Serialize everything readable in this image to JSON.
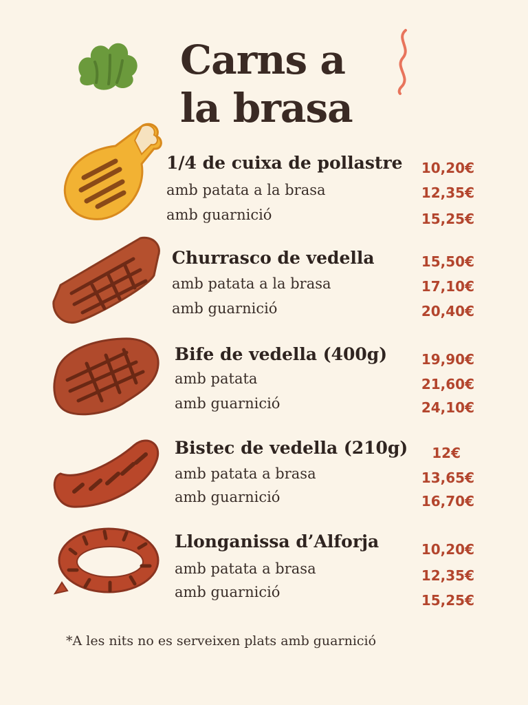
{
  "title": {
    "line1": "Carns a",
    "line2": "la brasa"
  },
  "sections": [
    {
      "icon": "chicken-leg-icon",
      "name": "1/4 de cuixa de pollastre",
      "price": "10,20€",
      "options": [
        {
          "label": "amb patata a la brasa",
          "price": "12,35€"
        },
        {
          "label": "amb guarnició",
          "price": "15,25€"
        }
      ]
    },
    {
      "icon": "steak-strip-icon",
      "name": "Churrasco de vedella",
      "price": "15,50€",
      "options": [
        {
          "label": "amb patata a la brasa",
          "price": "17,10€"
        },
        {
          "label": "amb guarnició",
          "price": "20,40€"
        }
      ]
    },
    {
      "icon": "steak-icon",
      "name": "Bife de vedella (400g)",
      "price": "19,90€",
      "options": [
        {
          "label": "amb patata",
          "price": "21,60€"
        },
        {
          "label": "amb guarnició",
          "price": "24,10€"
        }
      ]
    },
    {
      "icon": "sausage-icon",
      "name": "Bistec de vedella (210g)",
      "price": "12€",
      "options": [
        {
          "label": "amb patata a brasa",
          "price": "13,65€"
        },
        {
          "label": "amb guarnició",
          "price": "16,70€"
        }
      ]
    },
    {
      "icon": "sausage-ring-icon",
      "name": "Llonganissa d’Alforja",
      "price": "10,20€",
      "options": [
        {
          "label": "amb patata a brasa",
          "price": "12,35€"
        },
        {
          "label": "amb guarnició",
          "price": "15,25€"
        }
      ]
    }
  ],
  "footnote": "*A les nits no es serveixen plats amb guarnició",
  "colors": {
    "background": "#fbf4e8",
    "price": "#b3452d",
    "text": "#2f2420"
  }
}
